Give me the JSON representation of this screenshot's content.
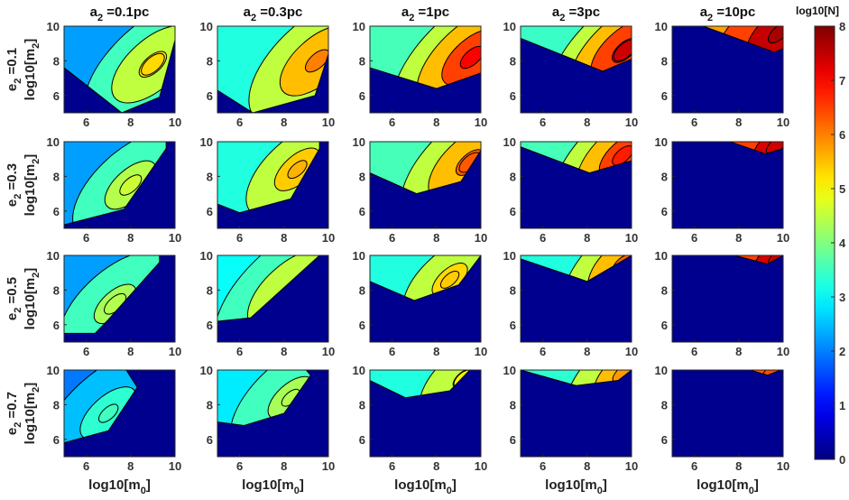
{
  "chart_data": {
    "type": "heatmap",
    "layout": {
      "rows": 4,
      "cols": 5
    },
    "column_titles": [
      {
        "base": "a",
        "sub": "2",
        "text": " =0.1pc"
      },
      {
        "base": "a",
        "sub": "2",
        "text": " =0.3pc"
      },
      {
        "base": "a",
        "sub": "2",
        "text": " =1pc"
      },
      {
        "base": "a",
        "sub": "2",
        "text": " =3pc"
      },
      {
        "base": "a",
        "sub": "2",
        "text": " =10pc"
      }
    ],
    "row_titles": [
      {
        "base": "e",
        "sub": "2",
        "text": " =0.1"
      },
      {
        "base": "e",
        "sub": "2",
        "text": " =0.3"
      },
      {
        "base": "e",
        "sub": "2",
        "text": " =0.5"
      },
      {
        "base": "e",
        "sub": "2",
        "text": " =0.7"
      }
    ],
    "xlabel": {
      "base": "log10[m",
      "sub": "0",
      "end": "]"
    },
    "ylabel": {
      "base": "log10[m",
      "sub": "2",
      "end": "]"
    },
    "xlim": [
      5,
      10
    ],
    "ylim": [
      5,
      10
    ],
    "xticks": [
      6,
      8,
      10
    ],
    "yticks": [
      6,
      8,
      10
    ],
    "colorbar": {
      "title": "log10[N]",
      "range": [
        0,
        8
      ],
      "ticks": [
        0,
        1,
        2,
        3,
        4,
        5,
        6,
        7,
        8
      ],
      "colormap": "jet"
    },
    "contour_levels": [
      1,
      2,
      3,
      4,
      5,
      6,
      7
    ],
    "background_color": "#00008f",
    "panels": [
      {
        "row": 0,
        "col": 0,
        "vmin": 2.0,
        "vmax": 5.5,
        "boundary": [
          [
            5,
            7.6
          ],
          [
            7.6,
            5
          ],
          [
            9.3,
            5.9
          ],
          [
            10,
            9.2
          ],
          [
            10,
            10
          ]
        ],
        "peak": [
          9.0,
          7.8
        ]
      },
      {
        "row": 0,
        "col": 1,
        "vmin": 3.0,
        "vmax": 6.2,
        "boundary": [
          [
            5,
            6.3
          ],
          [
            6.6,
            5
          ],
          [
            9.4,
            6.0
          ],
          [
            10,
            8.4
          ],
          [
            10,
            10
          ]
        ],
        "peak": [
          9.5,
          8.0
        ]
      },
      {
        "row": 0,
        "col": 2,
        "vmin": 3.3,
        "vmax": 7.2,
        "boundary": [
          [
            5,
            7.6
          ],
          [
            8.0,
            6.4
          ],
          [
            10,
            7.3
          ],
          [
            10,
            10
          ]
        ],
        "peak": [
          9.6,
          8.2
        ]
      },
      {
        "row": 0,
        "col": 3,
        "vmin": 3.2,
        "vmax": 7.6,
        "boundary": [
          [
            5,
            9.3
          ],
          [
            8.7,
            7.4
          ],
          [
            10,
            8.1
          ],
          [
            10,
            10
          ]
        ],
        "peak": [
          9.7,
          8.6
        ]
      },
      {
        "row": 0,
        "col": 4,
        "vmin": 5.5,
        "vmax": 7.9,
        "boundary": [
          [
            6.4,
            10
          ],
          [
            9.6,
            8.5
          ],
          [
            10,
            8.7
          ],
          [
            10,
            10
          ]
        ],
        "peak": [
          9.8,
          9.6
        ]
      },
      {
        "row": 1,
        "col": 0,
        "vmin": 2.0,
        "vmax": 4.8,
        "boundary": [
          [
            5,
            5.2
          ],
          [
            7.7,
            6.1
          ],
          [
            9.6,
            9.6
          ],
          [
            9.6,
            10
          ]
        ],
        "peak": [
          8.0,
          7.5
        ]
      },
      {
        "row": 1,
        "col": 1,
        "vmin": 3.0,
        "vmax": 5.8,
        "boundary": [
          [
            5,
            6.4
          ],
          [
            6.0,
            5.9
          ],
          [
            8.3,
            6.7
          ],
          [
            9.6,
            9.6
          ],
          [
            9.6,
            10
          ]
        ],
        "peak": [
          8.6,
          8.4
        ]
      },
      {
        "row": 1,
        "col": 2,
        "vmin": 3.3,
        "vmax": 6.5,
        "boundary": [
          [
            5,
            8.2
          ],
          [
            7.1,
            7.0
          ],
          [
            9.1,
            7.7
          ],
          [
            10,
            9.5
          ],
          [
            10,
            10
          ]
        ],
        "peak": [
          9.5,
          8.8
        ]
      },
      {
        "row": 1,
        "col": 3,
        "vmin": 3.3,
        "vmax": 7.0,
        "boundary": [
          [
            5,
            9.7
          ],
          [
            8.1,
            8.2
          ],
          [
            10,
            8.9
          ],
          [
            10,
            10
          ]
        ],
        "peak": [
          9.6,
          9.2
        ]
      },
      {
        "row": 1,
        "col": 4,
        "vmin": 5.5,
        "vmax": 7.6,
        "boundary": [
          [
            7.6,
            10
          ],
          [
            9.2,
            9.3
          ],
          [
            10,
            9.6
          ],
          [
            10,
            10
          ]
        ],
        "peak": [
          9.7,
          9.8
        ]
      },
      {
        "row": 2,
        "col": 0,
        "vmin": 2.0,
        "vmax": 4.6,
        "boundary": [
          [
            5,
            5.5
          ],
          [
            6.4,
            5.5
          ],
          [
            7.0,
            6.3
          ],
          [
            9.3,
            9.6
          ],
          [
            9.3,
            10
          ]
        ],
        "peak": [
          7.3,
          7.2
        ]
      },
      {
        "row": 2,
        "col": 1,
        "vmin": 2.8,
        "vmax": 5.3,
        "boundary": [
          [
            5,
            6.2
          ],
          [
            6.5,
            6.4
          ],
          [
            9.6,
            10
          ]
        ],
        "peak": [
          8.3,
          8.0
        ]
      },
      {
        "row": 2,
        "col": 2,
        "vmin": 3.0,
        "vmax": 5.6,
        "boundary": [
          [
            5,
            8.5
          ],
          [
            7.0,
            7.4
          ],
          [
            9.0,
            8.3
          ],
          [
            10,
            10
          ]
        ],
        "peak": [
          8.6,
          8.6
        ]
      },
      {
        "row": 2,
        "col": 3,
        "vmin": 3.0,
        "vmax": 6.4,
        "boundary": [
          [
            5,
            9.8
          ],
          [
            8.0,
            8.5
          ],
          [
            10,
            10
          ]
        ],
        "peak": [
          9.6,
          9.5
        ]
      },
      {
        "row": 2,
        "col": 4,
        "vmin": 5.6,
        "vmax": 7.6,
        "boundary": [
          [
            7.8,
            10
          ],
          [
            9.3,
            9.5
          ],
          [
            10,
            10
          ]
        ],
        "peak": [
          9.8,
          9.9
        ]
      },
      {
        "row": 3,
        "col": 0,
        "vmin": 1.7,
        "vmax": 3.7,
        "boundary": [
          [
            5,
            5.8
          ],
          [
            7.0,
            6.5
          ],
          [
            8.3,
            9.0
          ],
          [
            7.8,
            10
          ]
        ],
        "peak": [
          7.0,
          7.5
        ]
      },
      {
        "row": 3,
        "col": 1,
        "vmin": 2.6,
        "vmax": 4.6,
        "boundary": [
          [
            5,
            7.0
          ],
          [
            6.2,
            6.8
          ],
          [
            8.0,
            7.5
          ],
          [
            9.2,
            9.7
          ],
          [
            9.0,
            10
          ]
        ],
        "peak": [
          8.3,
          8.4
        ]
      },
      {
        "row": 3,
        "col": 2,
        "vmin": 3.0,
        "vmax": 5.3,
        "boundary": [
          [
            5,
            9.4
          ],
          [
            6.6,
            8.4
          ],
          [
            8.6,
            8.8
          ],
          [
            9.5,
            10
          ]
        ],
        "peak": [
          9.2,
          9.5
        ]
      },
      {
        "row": 3,
        "col": 3,
        "vmin": 3.1,
        "vmax": 6.0,
        "boundary": [
          [
            5,
            10
          ],
          [
            7.5,
            9.1
          ],
          [
            9.4,
            9.4
          ],
          [
            10,
            10
          ]
        ],
        "peak": [
          9.6,
          9.8
        ]
      },
      {
        "row": 3,
        "col": 4,
        "vmin": 5.8,
        "vmax": 6.6,
        "boundary": [
          [
            8.5,
            10
          ],
          [
            9.3,
            9.7
          ],
          [
            9.9,
            10
          ]
        ],
        "peak": [
          9.5,
          9.9
        ]
      }
    ]
  }
}
